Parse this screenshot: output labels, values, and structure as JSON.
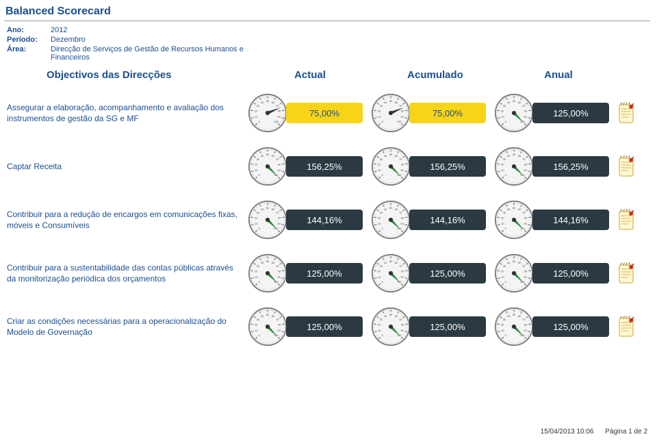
{
  "title": "Balanced Scorecard",
  "meta": {
    "ano_label": "Ano:",
    "ano_value": "2012",
    "periodo_label": "Período:",
    "periodo_value": "Dezembro",
    "area_label": "Área:",
    "area_value": "Direcção de Serviços de Gestão de Recursos Humanos e Financeiros"
  },
  "columns": {
    "objectivos": "Objectivos das Direcções",
    "actual": "Actual",
    "acumulado": "Acumulado",
    "anual": "Anual"
  },
  "gauge_style": {
    "face_fill": "#f4f4f4",
    "rim_stroke": "#808080",
    "tick_stroke": "#4a4a4a",
    "tick_label_color": "#4a4a4a",
    "tick_fontsize": 4,
    "needle_green": "#2d8a3e",
    "needle_dark": "#2b3a42",
    "hub_fill": "#333333",
    "ticks": [
      0,
      10,
      20,
      30,
      40,
      50,
      60,
      70,
      80,
      90,
      100
    ]
  },
  "note_icon": {
    "page_fill": "#fff8d6",
    "page_stroke": "#c9a227",
    "spiral_stroke": "#8a6d1f",
    "pin_fill": "#d93a2b"
  },
  "rows": [
    {
      "label": "Assegurar a elaboração, acompanhamento e avaliação dos instrumentos de gestão da SG e MF",
      "actual": {
        "value": "75,00%",
        "needle": 75,
        "needle_color": "dark",
        "pill": "yellow"
      },
      "acumulado": {
        "value": "75,00%",
        "needle": 75,
        "needle_color": "dark",
        "pill": "yellow"
      },
      "anual": {
        "value": "125,00%",
        "needle": 100,
        "needle_color": "green",
        "pill": "dark"
      }
    },
    {
      "label": "Captar Receita",
      "actual": {
        "value": "156,25%",
        "needle": 100,
        "needle_color": "green",
        "pill": "dark"
      },
      "acumulado": {
        "value": "156,25%",
        "needle": 100,
        "needle_color": "green",
        "pill": "dark"
      },
      "anual": {
        "value": "156,25%",
        "needle": 100,
        "needle_color": "green",
        "pill": "dark"
      }
    },
    {
      "label": "Contribuir para a redução de encargos em comunicações fixas, móveis e Consumíveis",
      "actual": {
        "value": "144,16%",
        "needle": 100,
        "needle_color": "green",
        "pill": "dark"
      },
      "acumulado": {
        "value": "144,16%",
        "needle": 100,
        "needle_color": "green",
        "pill": "dark"
      },
      "anual": {
        "value": "144,16%",
        "needle": 100,
        "needle_color": "green",
        "pill": "dark"
      }
    },
    {
      "label": "Contribuir para a sustentabilidade das contas públicas através da monitorização periódica dos orçamentos",
      "actual": {
        "value": "125,00%",
        "needle": 100,
        "needle_color": "green",
        "pill": "dark"
      },
      "acumulado": {
        "value": "125,00%",
        "needle": 100,
        "needle_color": "green",
        "pill": "dark"
      },
      "anual": {
        "value": "125,00%",
        "needle": 100,
        "needle_color": "green",
        "pill": "dark"
      }
    },
    {
      "label": "Criar as condições necessárias para a operacionalização do Modelo de Governação",
      "actual": {
        "value": "125,00%",
        "needle": 100,
        "needle_color": "green",
        "pill": "dark"
      },
      "acumulado": {
        "value": "125,00%",
        "needle": 100,
        "needle_color": "green",
        "pill": "dark"
      },
      "anual": {
        "value": "125,00%",
        "needle": 100,
        "needle_color": "green",
        "pill": "dark"
      }
    }
  ],
  "footer": {
    "timestamp": "15/04/2013 10:06",
    "page_label": "Página",
    "page_current": "1",
    "page_sep": "de",
    "page_total": "2"
  }
}
